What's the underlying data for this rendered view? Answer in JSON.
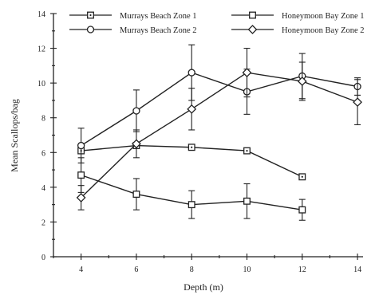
{
  "chart_data": {
    "type": "line",
    "xlabel": "Depth (m)",
    "ylabel": "Mean Scallops/bag",
    "xlim": [
      3,
      14.2
    ],
    "ylim": [
      0,
      14
    ],
    "xticks": [
      4,
      6,
      8,
      10,
      12,
      14
    ],
    "yticks": [
      0,
      2,
      4,
      6,
      8,
      10,
      12,
      14
    ],
    "grid": false,
    "legend_position": "top",
    "series": [
      {
        "name": "Murrays Beach Zone 1",
        "marker": "square-dot",
        "x": [
          4,
          6,
          8,
          10,
          12
        ],
        "y": [
          6.1,
          6.4,
          6.3,
          6.1,
          4.6
        ],
        "err": [
          0,
          0,
          0,
          0,
          0
        ]
      },
      {
        "name": "Murrays Beach Zone 2",
        "marker": "circle",
        "x": [
          4,
          6,
          8,
          10,
          12,
          14
        ],
        "y": [
          6.4,
          8.4,
          10.6,
          9.5,
          10.4,
          9.8
        ],
        "err": [
          1.0,
          1.2,
          1.6,
          1.3,
          1.3,
          0.5
        ]
      },
      {
        "name": "Honeymoon Bay Zone 1",
        "marker": "square",
        "x": [
          4,
          6,
          8,
          10,
          12
        ],
        "y": [
          4.7,
          3.6,
          3.0,
          3.2,
          2.7
        ],
        "err": [
          1.0,
          0.9,
          0.8,
          1.0,
          0.6
        ]
      },
      {
        "name": "Honeymoon Bay Zone 2",
        "marker": "diamond",
        "x": [
          4,
          6,
          8,
          10,
          12,
          14
        ],
        "y": [
          3.4,
          6.5,
          8.5,
          10.6,
          10.1,
          8.9
        ],
        "err": [
          0.7,
          0.8,
          1.2,
          1.4,
          1.1,
          1.3
        ]
      }
    ]
  }
}
